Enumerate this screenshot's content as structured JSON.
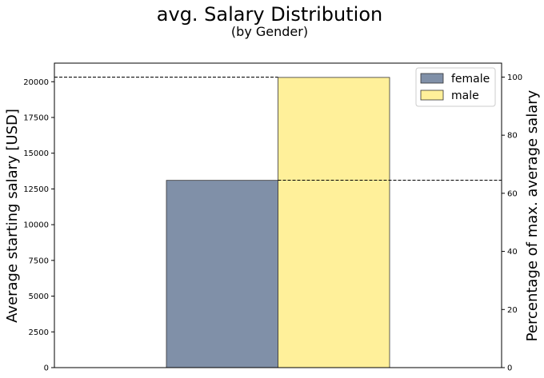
{
  "chart_data": {
    "type": "bar",
    "title": "avg. Salary Distribution",
    "subtitle": "(by Gender)",
    "ylabel": "Average starting salary [USD]",
    "ylabel_right": "Percentage of max. average salary",
    "ylim": [
      0,
      21300
    ],
    "ylim_right": [
      0,
      104.8
    ],
    "yticks": [
      0,
      2500,
      5000,
      7500,
      10000,
      12500,
      15000,
      17500,
      20000
    ],
    "yticks_right": [
      0,
      20,
      40,
      60,
      80,
      100
    ],
    "series": [
      {
        "name": "female",
        "value": 13100,
        "percent": 64.5,
        "color": "#8090a8"
      },
      {
        "name": "male",
        "value": 20300,
        "percent": 100,
        "color": "#fff09a"
      }
    ],
    "reference_lines_percent": [
      100,
      64.5
    ],
    "legend": {
      "position": "top-right"
    },
    "grid": false
  }
}
